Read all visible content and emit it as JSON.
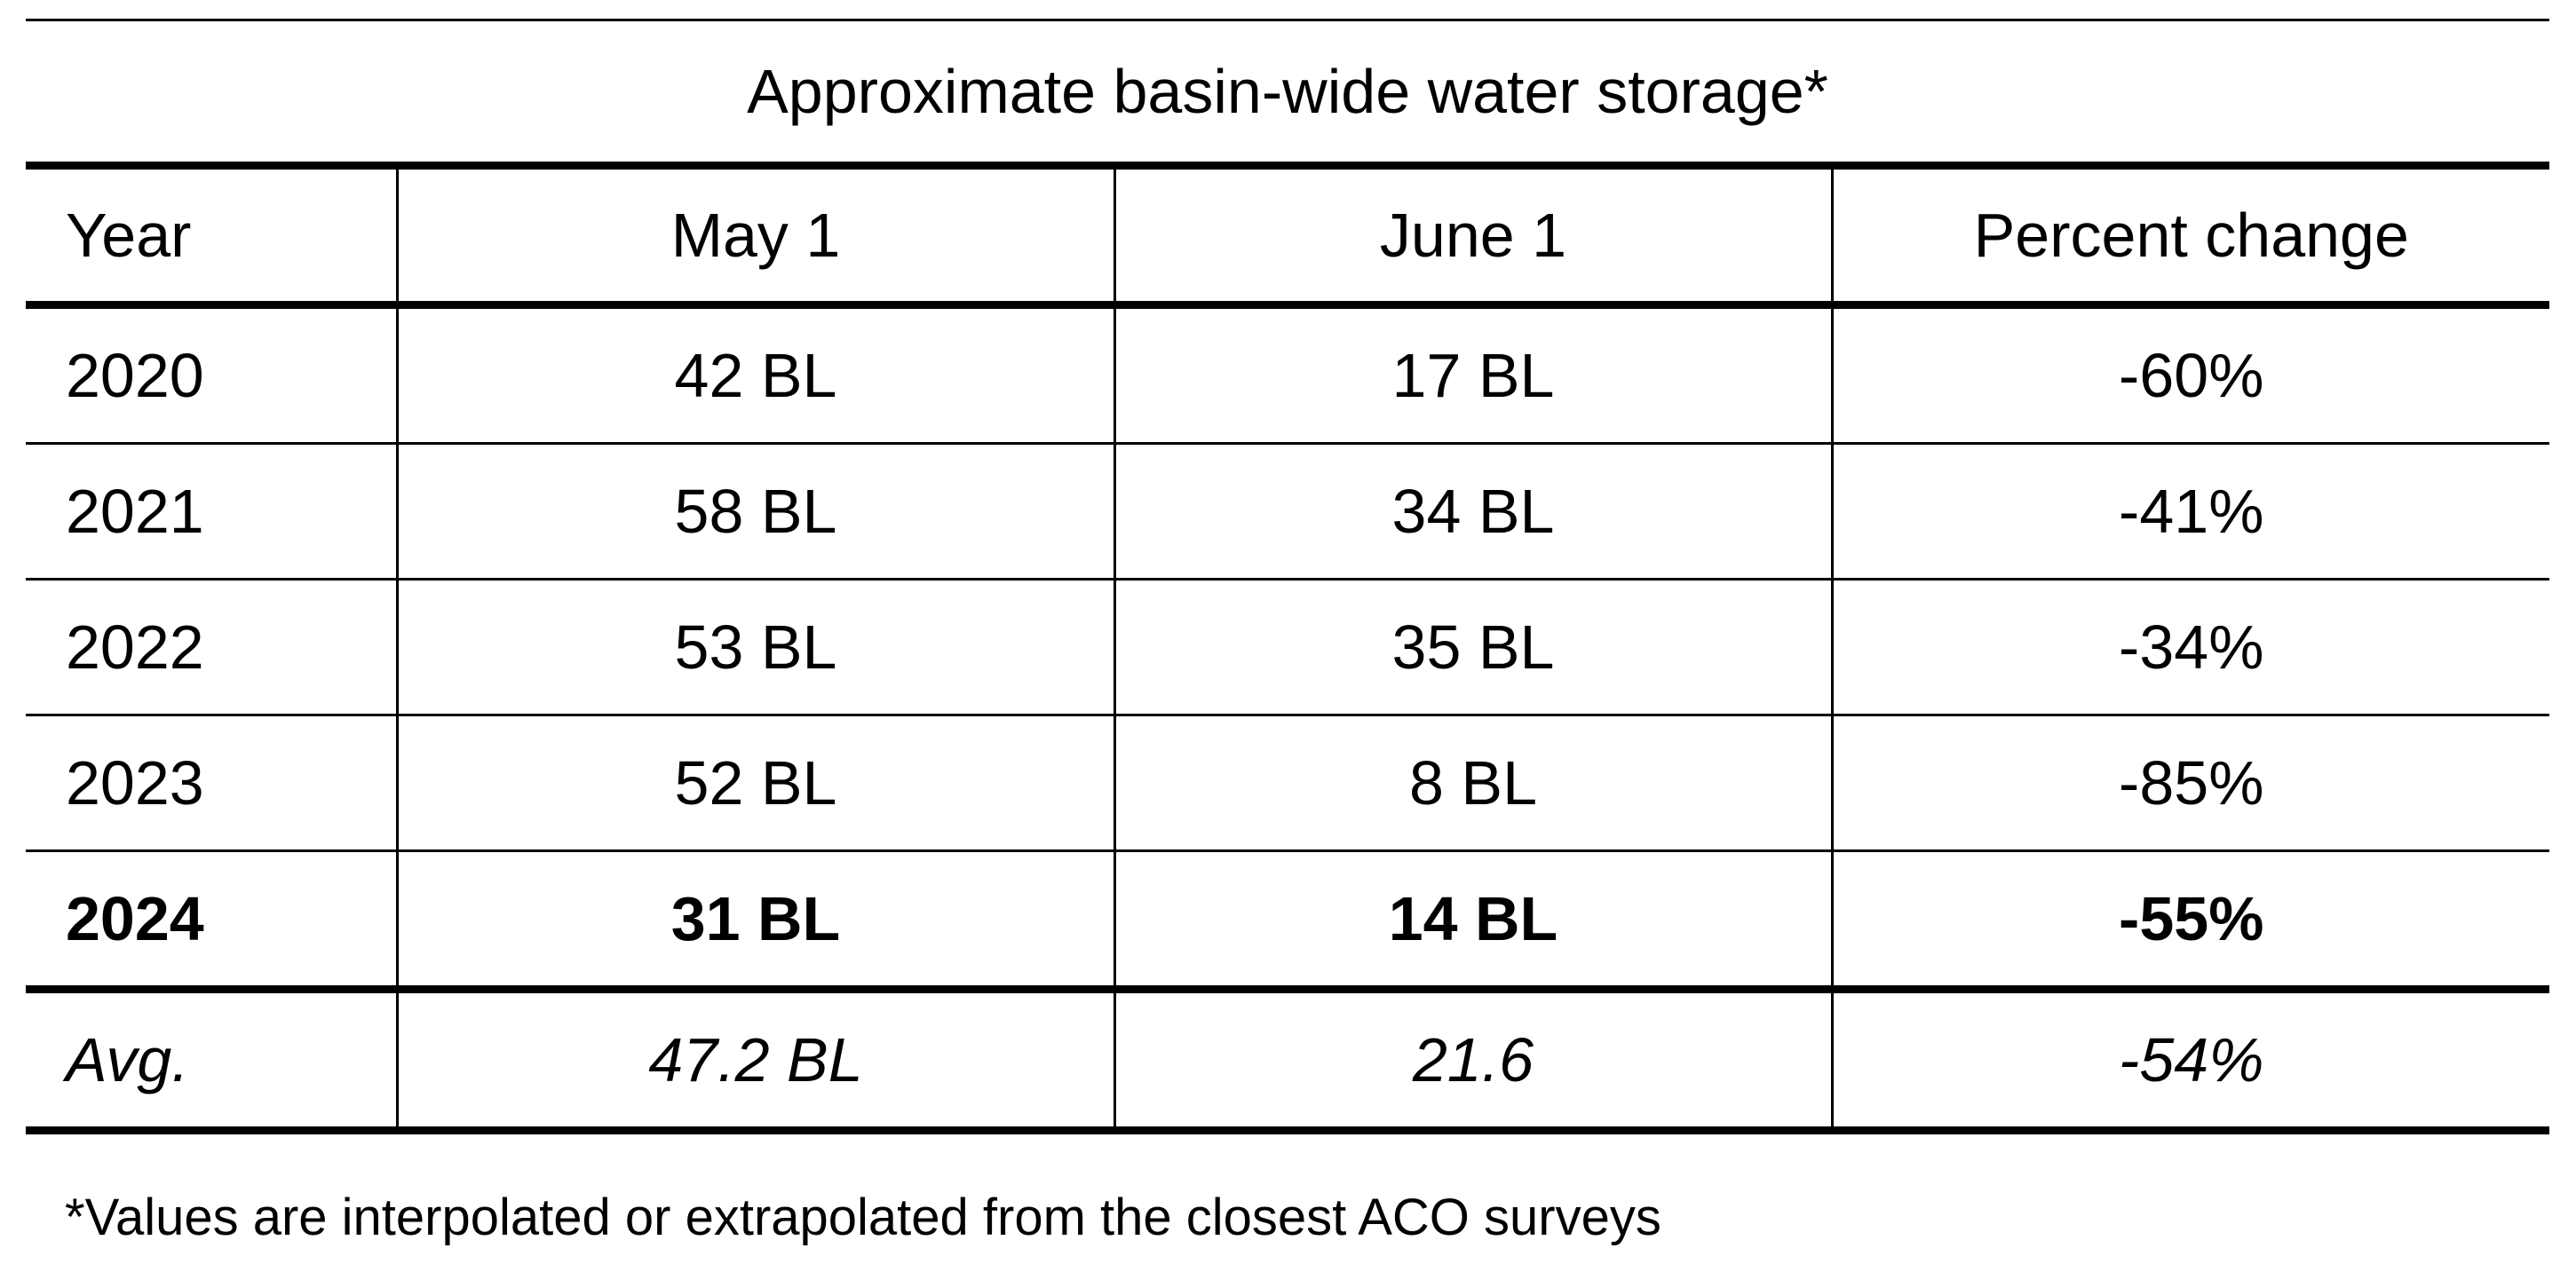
{
  "title": "Approximate basin-wide water storage*",
  "headers": [
    "Year",
    "May 1",
    "June 1",
    "Percent change"
  ],
  "rows": [
    {
      "year": "2020",
      "may": "42 BL",
      "june": "17 BL",
      "change": "-60%"
    },
    {
      "year": "2021",
      "may": "58 BL",
      "june": "34 BL",
      "change": "-41%"
    },
    {
      "year": "2022",
      "may": "53 BL",
      "june": "35 BL",
      "change": "-34%"
    },
    {
      "year": "2023",
      "may": "52 BL",
      "june": "8 BL",
      "change": "-85%"
    },
    {
      "year": "2024",
      "may": "31 BL",
      "june": "14 BL",
      "change": "-55%"
    }
  ],
  "average": {
    "year": "Avg.",
    "may": "47.2 BL",
    "june": "21.6",
    "change": "-54%"
  },
  "footnote": "*Values are interpolated or extrapolated from the closest ACO surveys"
}
